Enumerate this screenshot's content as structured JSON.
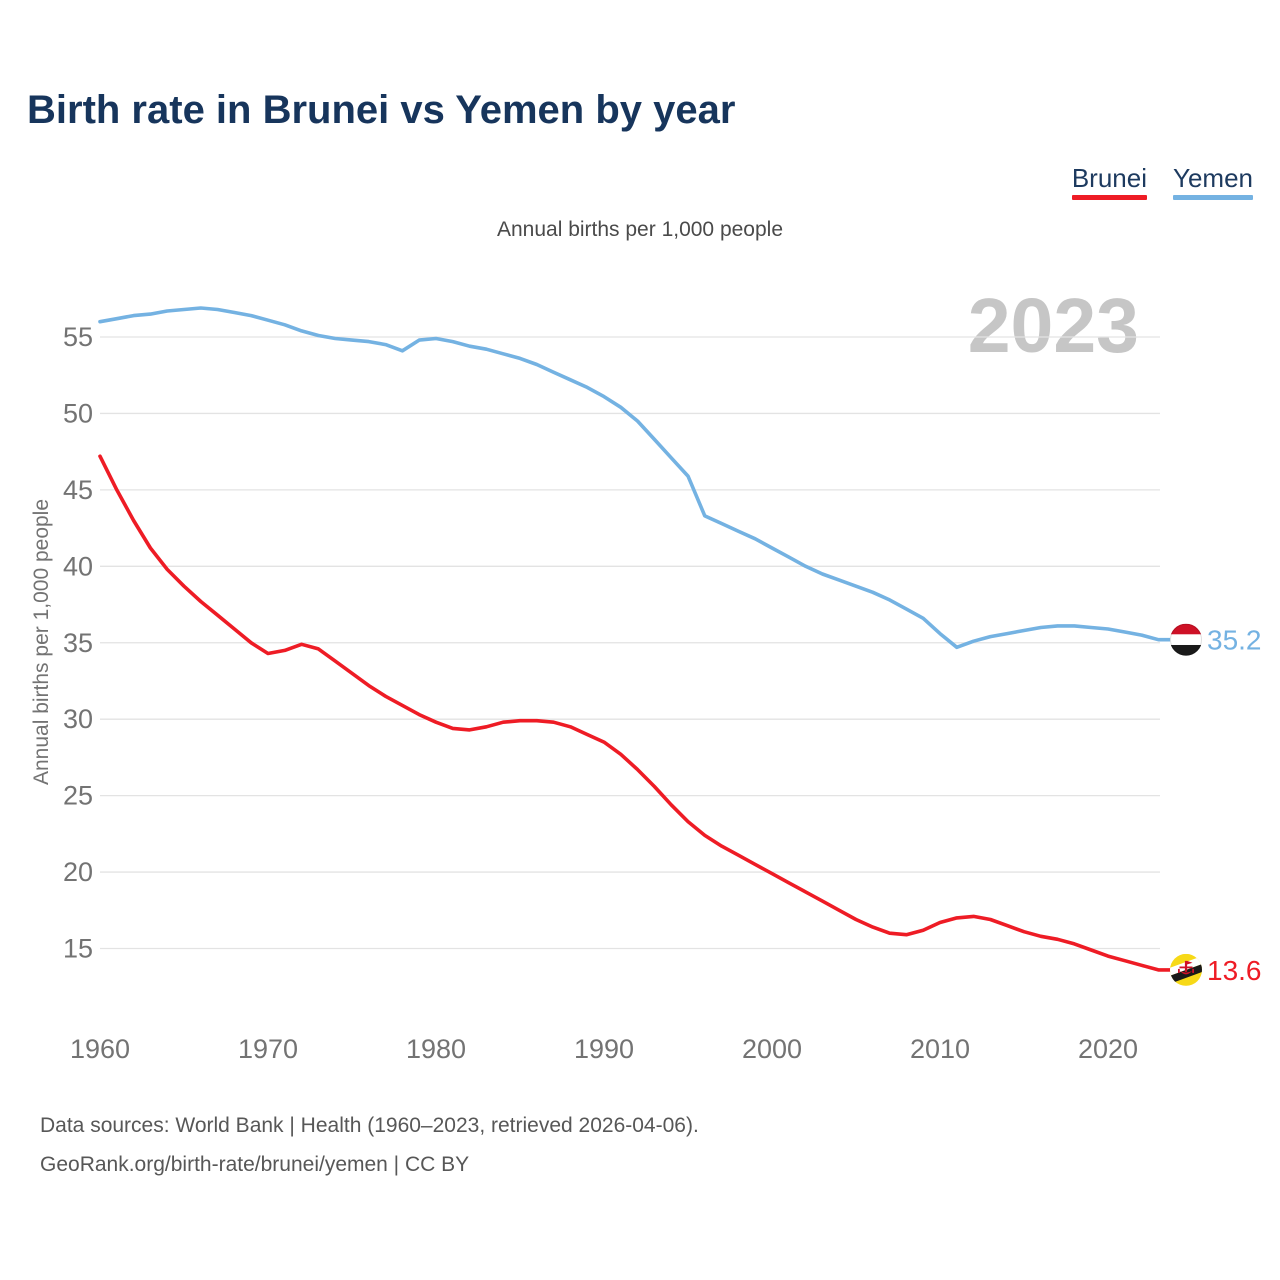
{
  "title": "Birth rate in Brunei vs Yemen by year",
  "subtitle": "Annual births per 1,000 people",
  "watermark": "2023",
  "legend": {
    "brunei": {
      "label": "Brunei",
      "color": "#ee1c25"
    },
    "yemen": {
      "label": "Yemen",
      "color": "#74b2e2"
    }
  },
  "end_labels": {
    "yemen": {
      "value": "35.2",
      "flag": "yemen-flag-icon"
    },
    "brunei": {
      "value": "13.6",
      "flag": "brunei-flag-icon"
    }
  },
  "source": {
    "line1": "Data sources: World Bank | Health (1960–2023, retrieved 2026-04-06).",
    "line2": "GeoRank.org/birth-rate/brunei/yemen | CC BY"
  },
  "chart_data": {
    "type": "line",
    "title": "Birth rate in Brunei vs Yemen by year",
    "xlabel": "",
    "ylabel": "Annual births per 1,000 people",
    "grid": "horizontal",
    "legend_position": "top-right",
    "yticks": [
      15,
      20,
      25,
      30,
      35,
      40,
      45,
      50,
      55
    ],
    "xticks": [
      1960,
      1970,
      1980,
      1990,
      2000,
      2010,
      2020
    ],
    "ylim": [
      13,
      57.5
    ],
    "xlim": [
      1960,
      2023
    ],
    "x": [
      1960,
      1961,
      1962,
      1963,
      1964,
      1965,
      1966,
      1967,
      1968,
      1969,
      1970,
      1971,
      1972,
      1973,
      1974,
      1975,
      1976,
      1977,
      1978,
      1979,
      1980,
      1981,
      1982,
      1983,
      1984,
      1985,
      1986,
      1987,
      1988,
      1989,
      1990,
      1991,
      1992,
      1993,
      1994,
      1995,
      1996,
      1997,
      1998,
      1999,
      2000,
      2001,
      2002,
      2003,
      2004,
      2005,
      2006,
      2007,
      2008,
      2009,
      2010,
      2011,
      2012,
      2013,
      2014,
      2015,
      2016,
      2017,
      2018,
      2019,
      2020,
      2021,
      2022,
      2023
    ],
    "series": [
      {
        "name": "Yemen",
        "color": "#74b2e2",
        "end_value": 35.2,
        "values": [
          56.0,
          56.2,
          56.4,
          56.5,
          56.7,
          56.8,
          56.9,
          56.8,
          56.6,
          56.4,
          56.1,
          55.8,
          55.4,
          55.1,
          54.9,
          54.8,
          54.7,
          54.5,
          54.1,
          54.8,
          54.9,
          54.7,
          54.4,
          54.2,
          53.9,
          53.6,
          53.2,
          52.7,
          52.2,
          51.7,
          51.1,
          50.4,
          49.5,
          48.3,
          47.1,
          45.9,
          43.3,
          42.8,
          42.3,
          41.8,
          41.2,
          40.6,
          40.0,
          39.5,
          39.1,
          38.7,
          38.3,
          37.8,
          37.2,
          36.6,
          35.6,
          34.7,
          35.1,
          35.4,
          35.6,
          35.8,
          36.0,
          36.1,
          36.1,
          36.0,
          35.9,
          35.7,
          35.5,
          35.2
        ]
      },
      {
        "name": "Brunei",
        "color": "#ee1c25",
        "end_value": 13.6,
        "values": [
          47.2,
          45.0,
          43.0,
          41.2,
          39.8,
          38.7,
          37.7,
          36.8,
          35.9,
          35.0,
          34.3,
          34.5,
          34.9,
          34.6,
          33.8,
          33.0,
          32.2,
          31.5,
          30.9,
          30.3,
          29.8,
          29.4,
          29.3,
          29.5,
          29.8,
          29.9,
          29.9,
          29.8,
          29.5,
          29.0,
          28.5,
          27.7,
          26.7,
          25.6,
          24.4,
          23.3,
          22.4,
          21.7,
          21.1,
          20.5,
          19.9,
          19.3,
          18.7,
          18.1,
          17.5,
          16.9,
          16.4,
          16.0,
          15.9,
          16.2,
          16.7,
          17.0,
          17.1,
          16.9,
          16.5,
          16.1,
          15.8,
          15.6,
          15.3,
          14.9,
          14.5,
          14.2,
          13.9,
          13.6
        ]
      }
    ]
  }
}
